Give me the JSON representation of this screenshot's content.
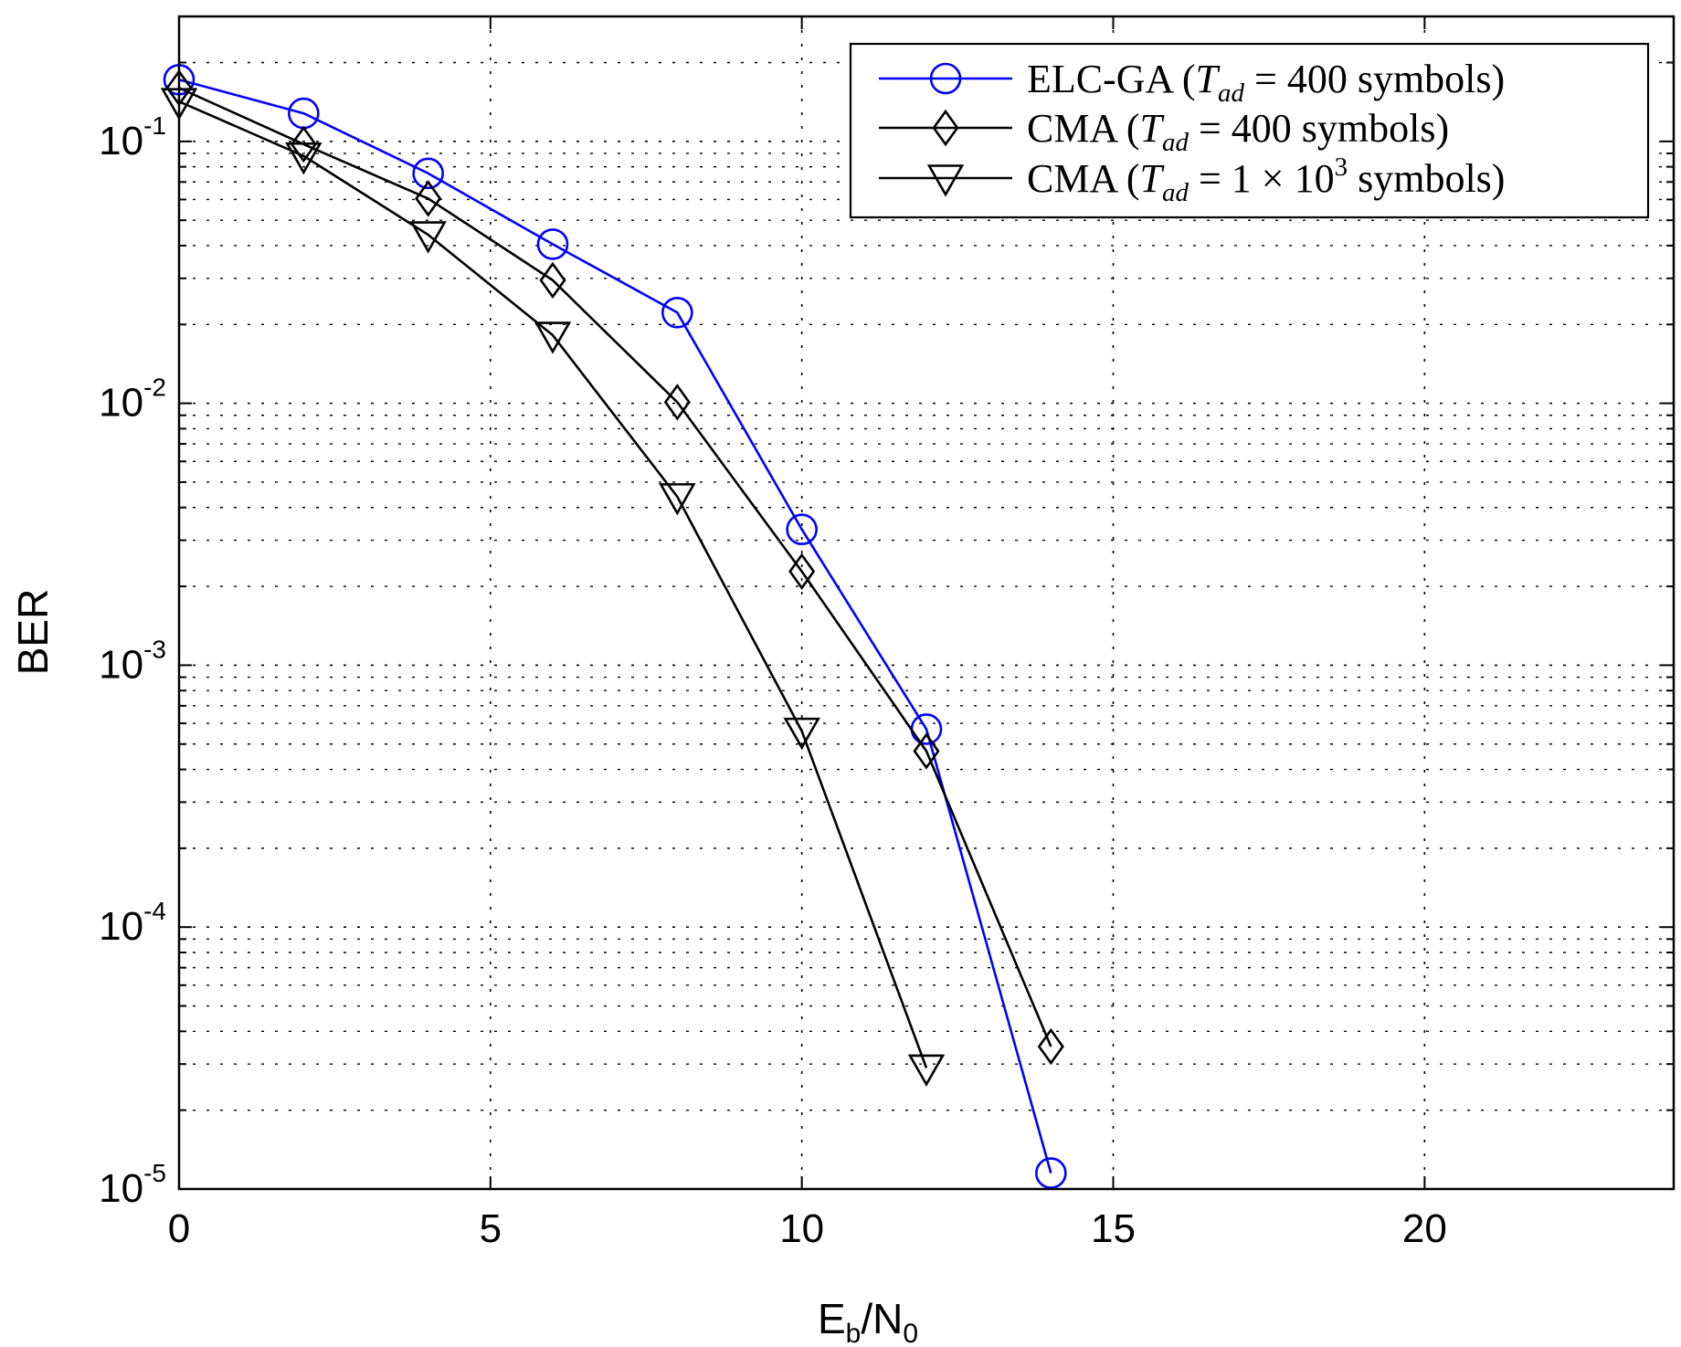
{
  "chart_data": {
    "type": "line",
    "xlabel": {
      "main": "E",
      "sub1": "b",
      "mid": "/N",
      "sub2": "0"
    },
    "ylabel": "BER",
    "xlim": [
      0,
      24
    ],
    "ylim": [
      1e-05,
      0.3
    ],
    "yscale": "log",
    "grid": true,
    "legend_position": "top-right",
    "x_ticks": [
      "0",
      "5",
      "10",
      "15",
      "20"
    ],
    "y_ticks": [
      {
        "base": "10",
        "exp": "-1"
      },
      {
        "base": "10",
        "exp": "-2"
      },
      {
        "base": "10",
        "exp": "-3"
      },
      {
        "base": "10",
        "exp": "-4"
      },
      {
        "base": "10",
        "exp": "-5"
      }
    ],
    "series": [
      {
        "name": "ELC-GA (T_ad = 400 symbols)",
        "legend_parts": {
          "prefix": "ELC-GA (",
          "var": "T",
          "sub": "ad",
          "rest": " = 400 symbols)"
        },
        "color": "#0000ff",
        "marker": "circle",
        "x": [
          0,
          2,
          4,
          6,
          8,
          10,
          12,
          14
        ],
        "y": [
          0.172,
          0.128,
          0.0755,
          0.0405,
          0.0222,
          0.0033,
          0.00057,
          1.15e-05
        ]
      },
      {
        "name": "CMA (T_ad = 400 symbols)",
        "legend_parts": {
          "prefix": "CMA (",
          "var": "T",
          "sub": "ad",
          "rest": " = 400 symbols)"
        },
        "color": "#000000",
        "marker": "diamond",
        "x": [
          0,
          2,
          4,
          6,
          8,
          10,
          12,
          14
        ],
        "y": [
          0.16,
          0.0975,
          0.0605,
          0.0295,
          0.0101,
          0.00228,
          0.00047,
          3.5e-05
        ]
      },
      {
        "name": "CMA (T_ad = 1 × 10^3 symbols)",
        "legend_parts": {
          "prefix": "CMA (",
          "var": "T",
          "sub": "ad",
          "rest": " = 1 × 10",
          "sup": "3",
          "tail": " symbols)"
        },
        "color": "#000000",
        "marker": "triangle-down",
        "x": [
          0,
          2,
          4,
          6,
          8,
          10,
          12
        ],
        "y": [
          0.142,
          0.088,
          0.044,
          0.0182,
          0.0044,
          0.00056,
          2.9e-05
        ]
      }
    ]
  }
}
